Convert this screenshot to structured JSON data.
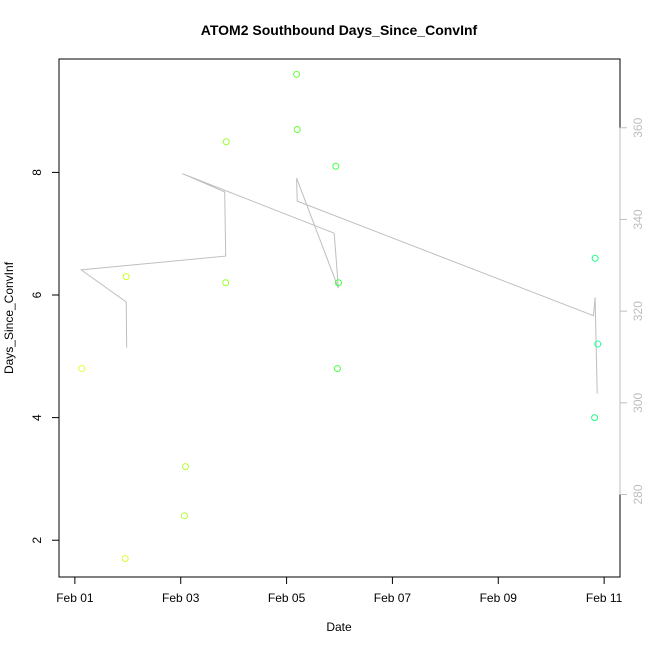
{
  "chart_data": {
    "type": "scatter",
    "title": "ATOM2 Southbound Days_Since_ConvInf",
    "xlabel": "Date",
    "ylabel": "Days_Since_ConvInf",
    "x_ticks": [
      "Feb 01",
      "Feb 03",
      "Feb 05",
      "Feb 07",
      "Feb 09",
      "Feb 11"
    ],
    "x_tick_values": [
      0,
      2,
      4,
      6,
      8,
      10
    ],
    "xlim": [
      -0.3,
      10.3
    ],
    "y_ticks": [
      2,
      4,
      6,
      8
    ],
    "ylim": [
      1.4,
      9.85
    ],
    "y2_ticks": [
      280,
      300,
      320,
      340,
      360
    ],
    "y2lim": [
      262,
      375
    ],
    "grid": false,
    "series": [
      {
        "kind": "points",
        "axis": "left",
        "points": [
          {
            "x": 0.13,
            "y": 4.8,
            "color": "#e6ff33"
          },
          {
            "x": 0.95,
            "y": 1.7,
            "color": "#d9ff33"
          },
          {
            "x": 0.97,
            "y": 6.3,
            "color": "#ccff33"
          },
          {
            "x": 2.07,
            "y": 2.4,
            "color": "#b3ff33"
          },
          {
            "x": 2.09,
            "y": 3.2,
            "color": "#b3ff33"
          },
          {
            "x": 2.85,
            "y": 6.2,
            "color": "#99ff33"
          },
          {
            "x": 2.86,
            "y": 8.5,
            "color": "#99ff33"
          },
          {
            "x": 4.19,
            "y": 9.6,
            "color": "#66ff33"
          },
          {
            "x": 4.2,
            "y": 8.7,
            "color": "#66ff33"
          },
          {
            "x": 4.93,
            "y": 8.1,
            "color": "#44ff44"
          },
          {
            "x": 4.96,
            "y": 4.8,
            "color": "#44ff44"
          },
          {
            "x": 4.98,
            "y": 6.2,
            "color": "#44ff44"
          },
          {
            "x": 9.82,
            "y": 4.0,
            "color": "#22ff88"
          },
          {
            "x": 9.83,
            "y": 6.6,
            "color": "#22ff88"
          },
          {
            "x": 9.88,
            "y": 5.2,
            "color": "#22ff99"
          }
        ]
      },
      {
        "kind": "line",
        "axis": "right",
        "color": "#bebebe",
        "points": [
          {
            "x": 0.98,
            "y": 312
          },
          {
            "x": 0.97,
            "y": 322
          },
          {
            "x": 0.12,
            "y": 329
          },
          {
            "x": 2.85,
            "y": 332
          },
          {
            "x": 2.83,
            "y": 346
          },
          {
            "x": 2.03,
            "y": 350
          },
          {
            "x": 4.9,
            "y": 337
          },
          {
            "x": 4.98,
            "y": 325
          },
          {
            "x": 4.19,
            "y": 349
          },
          {
            "x": 4.2,
            "y": 344
          },
          {
            "x": 9.8,
            "y": 319
          },
          {
            "x": 9.83,
            "y": 323
          },
          {
            "x": 9.87,
            "y": 302
          }
        ]
      }
    ]
  }
}
